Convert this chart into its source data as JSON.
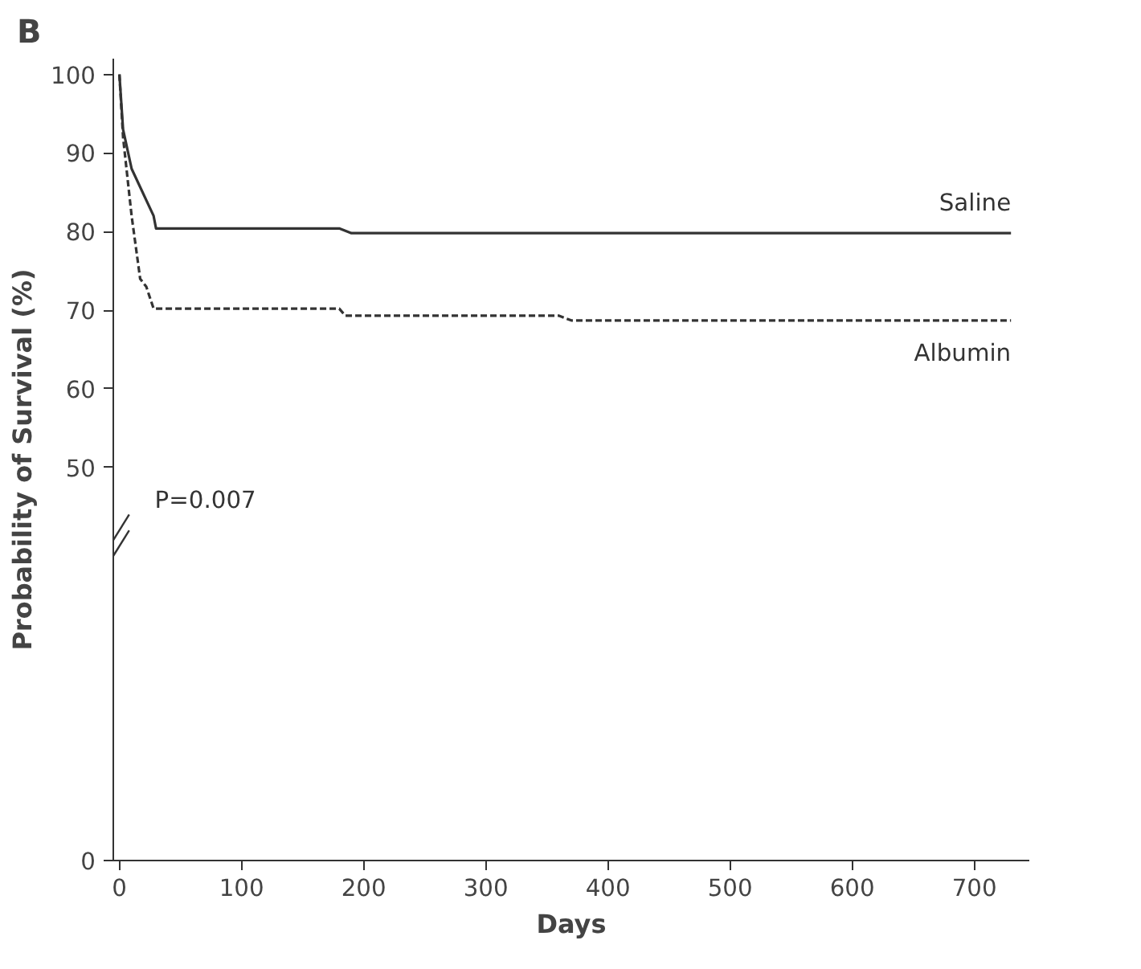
{
  "chart_data": {
    "type": "line",
    "title": "B",
    "xlabel": "Days",
    "ylabel": "Probability of Survival (%)",
    "xlim": [
      -5,
      745
    ],
    "xticks": [
      0,
      100,
      200,
      300,
      400,
      500,
      600,
      700
    ],
    "ylim": [
      0,
      102
    ],
    "yticks": [
      0,
      50,
      60,
      70,
      80,
      90,
      100
    ],
    "grid": false,
    "legend": false,
    "marker": "none",
    "annotations": [
      "P=0.007"
    ],
    "series": [
      {
        "name": "Saline",
        "color": "#333333",
        "line_style": "solid",
        "x": [
          0,
          3,
          10,
          28,
          30,
          180,
          190,
          730
        ],
        "values": [
          100,
          93,
          88,
          82,
          80.4,
          80.4,
          79.8,
          79.8
        ]
      },
      {
        "name": "Albumin",
        "color": "#333333",
        "line_style": "dashed",
        "x": [
          0,
          3,
          10,
          17,
          22,
          28,
          180,
          185,
          360,
          370,
          730
        ],
        "values": [
          100,
          92,
          82,
          74,
          73,
          70.2,
          70.2,
          69.3,
          69.3,
          68.7,
          68.7
        ]
      }
    ]
  }
}
